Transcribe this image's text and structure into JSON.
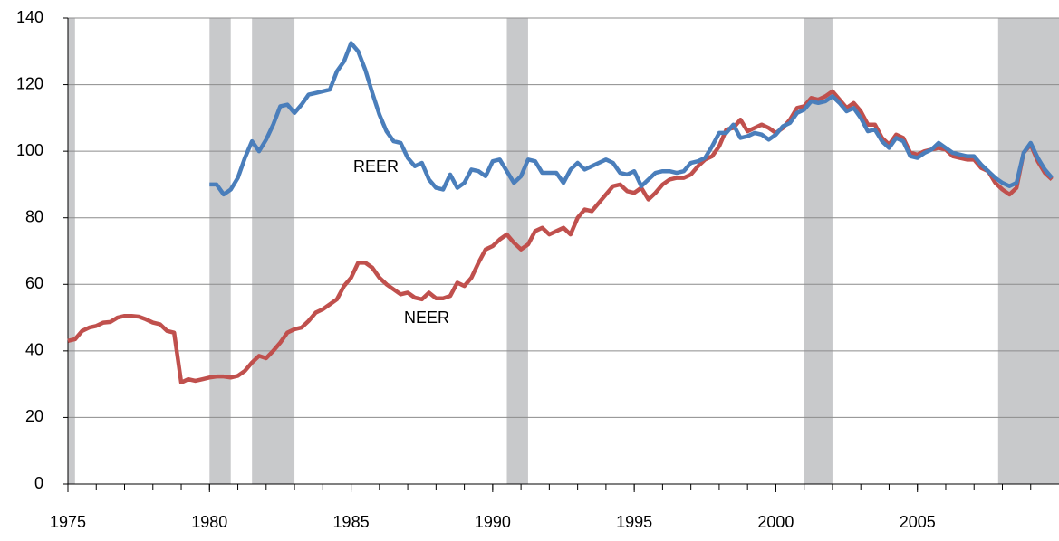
{
  "chart_data": {
    "type": "line",
    "x": [
      1975,
      1975.25,
      1975.5,
      1975.75,
      1976,
      1976.25,
      1976.5,
      1976.75,
      1977,
      1977.25,
      1977.5,
      1977.75,
      1978,
      1978.25,
      1978.5,
      1978.75,
      1979,
      1979.25,
      1979.5,
      1979.75,
      1980,
      1980.25,
      1980.5,
      1980.75,
      1981,
      1981.25,
      1981.5,
      1981.75,
      1982,
      1982.25,
      1982.5,
      1982.75,
      1983,
      1983.25,
      1983.5,
      1983.75,
      1984,
      1984.25,
      1984.5,
      1984.75,
      1985,
      1985.25,
      1985.5,
      1985.75,
      1986,
      1986.25,
      1986.5,
      1986.75,
      1987,
      1987.25,
      1987.5,
      1987.75,
      1988,
      1988.25,
      1988.5,
      1988.75,
      1989,
      1989.25,
      1989.5,
      1989.75,
      1990,
      1990.25,
      1990.5,
      1990.75,
      1991,
      1991.25,
      1991.5,
      1991.75,
      1992,
      1992.25,
      1992.5,
      1992.75,
      1993,
      1993.25,
      1993.5,
      1993.75,
      1994,
      1994.25,
      1994.5,
      1994.75,
      1995,
      1995.25,
      1995.5,
      1995.75,
      1996,
      1996.25,
      1996.5,
      1996.75,
      1997,
      1997.25,
      1997.5,
      1997.75,
      1998,
      1998.25,
      1998.5,
      1998.75,
      1999,
      1999.25,
      1999.5,
      1999.75,
      2000,
      2000.25,
      2000.5,
      2000.75,
      2001,
      2001.25,
      2001.5,
      2001.75,
      2002,
      2002.25,
      2002.5,
      2002.75,
      2003,
      2003.25,
      2003.5,
      2003.75,
      2004,
      2004.25,
      2004.5,
      2004.75,
      2005,
      2005.25,
      2005.5,
      2005.75,
      2006,
      2006.25,
      2006.5,
      2006.75,
      2007,
      2007.25,
      2007.5,
      2007.75,
      2008,
      2008.25,
      2008.5,
      2008.75,
      2009,
      2009.25,
      2009.5,
      2009.75
    ],
    "series": [
      {
        "name": "REER",
        "color": "#4a7ebb",
        "values": [
          null,
          null,
          null,
          null,
          null,
          null,
          null,
          null,
          null,
          null,
          null,
          null,
          null,
          null,
          null,
          null,
          null,
          null,
          null,
          null,
          90,
          90,
          87,
          88.5,
          92,
          98,
          103,
          100,
          103.5,
          108,
          113.5,
          114,
          111.5,
          114,
          117,
          117.5,
          118,
          118.5,
          124,
          127,
          132.5,
          130,
          124.5,
          117.5,
          111,
          106,
          103,
          102.5,
          98,
          95.5,
          96.5,
          91.5,
          89,
          88.5,
          93,
          89,
          90.5,
          94.5,
          94,
          92.5,
          97,
          97.5,
          94,
          90.5,
          92.5,
          97.5,
          97,
          93.5,
          93.5,
          93.5,
          90.5,
          94.5,
          96.5,
          94.5,
          95.5,
          96.5,
          97.5,
          96.5,
          93.5,
          93,
          94,
          89.5,
          91.5,
          93.5,
          94,
          94,
          93.5,
          94,
          96.5,
          97,
          98,
          101.5,
          105.5,
          105.5,
          108,
          104,
          104.5,
          105.5,
          105,
          103.5,
          105,
          107.5,
          108.5,
          111.5,
          112.5,
          115,
          114.5,
          115,
          116.5,
          114.5,
          112,
          113,
          110,
          106,
          106.5,
          103,
          101,
          104,
          103,
          98.5,
          98,
          99.5,
          100.5,
          102.5,
          101,
          99.5,
          99,
          98.5,
          98.5,
          96,
          94,
          92,
          90.5,
          89.5,
          90.5,
          99.5,
          102.5,
          98,
          94.5,
          92
        ]
      },
      {
        "name": "NEER",
        "color": "#c0504d",
        "values": [
          43,
          43.5,
          46,
          47,
          47.5,
          48.5,
          48.7,
          50,
          50.5,
          50.5,
          50.3,
          49.5,
          48.5,
          48,
          46,
          45.5,
          30.5,
          31.5,
          31,
          31.5,
          32,
          32.3,
          32.3,
          32,
          32.5,
          34,
          36.5,
          38.5,
          37.8,
          40,
          42.5,
          45.5,
          46.5,
          47,
          49,
          51.5,
          52.5,
          54,
          55.5,
          59.5,
          62,
          66.5,
          66.5,
          65,
          62,
          60,
          58.5,
          57,
          57.5,
          56,
          55.5,
          57.5,
          55.8,
          55.8,
          56.5,
          60.5,
          59.5,
          62,
          66.5,
          70.5,
          71.5,
          73.5,
          75,
          72.5,
          70.5,
          72,
          76,
          77,
          75,
          76,
          77,
          75,
          80,
          82.5,
          82,
          84.5,
          87,
          89.5,
          90,
          88,
          87.5,
          89,
          85.5,
          87.5,
          90,
          91.5,
          92,
          92,
          93,
          95.5,
          97.5,
          98.5,
          101.5,
          106.5,
          107,
          109.5,
          106,
          107,
          108,
          107,
          105.5,
          107,
          109.5,
          113,
          113.5,
          116,
          115.5,
          116.5,
          118,
          115.5,
          113,
          114.5,
          112,
          108,
          108,
          104,
          102,
          105,
          104,
          99.5,
          99,
          100,
          100.5,
          101,
          100.5,
          98.5,
          98,
          97.5,
          97.5,
          95,
          94,
          90.5,
          88.5,
          87,
          89,
          99.5,
          102,
          97,
          93.5,
          91.5
        ]
      }
    ],
    "xlim": [
      1975,
      2010
    ],
    "xticks": [
      1975,
      1980,
      1985,
      1990,
      1995,
      2000,
      2005
    ],
    "xminorticks": [
      1975,
      1976,
      1977,
      1978,
      1979,
      1980,
      1981,
      1982,
      1983,
      1984,
      1985,
      1986,
      1987,
      1988,
      1989,
      1990,
      1991,
      1992,
      1993,
      1994,
      1995,
      1996,
      1997,
      1998,
      1999,
      2000,
      2001,
      2002,
      2003,
      2004,
      2005,
      2006,
      2007,
      2008,
      2009
    ],
    "ylim": [
      0,
      140
    ],
    "yticks": [
      0,
      20,
      40,
      60,
      80,
      100,
      120,
      140
    ],
    "grid": true,
    "shading": [
      [
        1975,
        1975.25
      ],
      [
        1980,
        1980.75
      ],
      [
        1981.5,
        1983
      ],
      [
        1990.5,
        1991.25
      ],
      [
        2001,
        2002
      ],
      [
        2007.85,
        2010
      ]
    ],
    "shading_color": "#c8c9cb"
  }
}
